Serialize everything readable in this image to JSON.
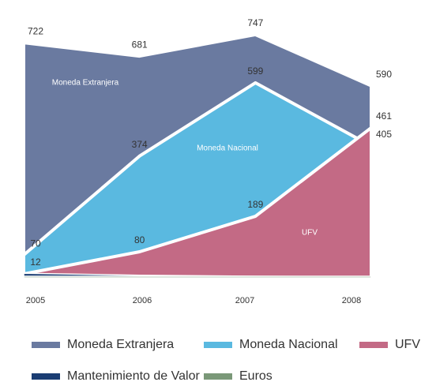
{
  "chart_data": {
    "type": "area",
    "categories": [
      "2005",
      "2006",
      "2007",
      "2008"
    ],
    "series": [
      {
        "name": "Moneda Extranjera",
        "color": "#6a7aa0",
        "values": [
          722,
          681,
          747,
          590
        ]
      },
      {
        "name": "Moneda Nacional",
        "color": "#5ab9e0",
        "values": [
          70,
          374,
          599,
          405
        ]
      },
      {
        "name": "UFV",
        "color": "#c36a85",
        "values": [
          12,
          80,
          189,
          461
        ]
      },
      {
        "name": "Mantenimiento de Valor",
        "color": "#1a3d73",
        "values": [
          14,
          8,
          5,
          3
        ]
      },
      {
        "name": "Euros",
        "color": "#7a9878",
        "values": [
          5,
          5,
          5,
          5
        ]
      }
    ],
    "ylim": [
      0,
      800
    ]
  }
}
